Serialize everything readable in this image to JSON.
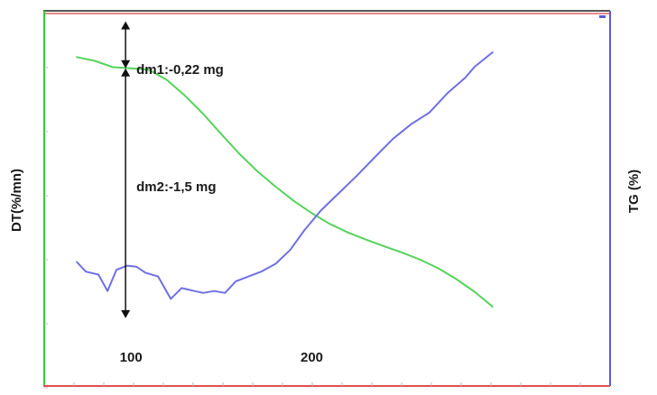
{
  "chart_data": {
    "type": "line",
    "xlabel": "",
    "left_axis_label": "DT(%/mn)",
    "right_axis_label": "TG (%)",
    "x_tick_labels": [
      100,
      200
    ],
    "xlim": [
      52,
      365
    ],
    "ylim": [
      0,
      100
    ],
    "grid": false,
    "series": [
      {
        "color": "#55d35b",
        "axis": "right",
        "x": [
          70,
          80,
          90,
          100,
          110,
          120,
          130,
          140,
          150,
          160,
          170,
          180,
          190,
          200,
          210,
          220,
          230,
          240,
          250,
          260,
          270,
          280,
          290,
          300
        ],
        "y": [
          88.3,
          87.3,
          85.6,
          85.3,
          84.9,
          82.1,
          77.9,
          73.0,
          67.6,
          62.3,
          57.6,
          53.5,
          49.7,
          46.4,
          43.5,
          41.2,
          39.3,
          37.5,
          35.8,
          33.9,
          31.6,
          28.7,
          25.3,
          21.3
        ]
      },
      {
        "color": "#6f6fe6",
        "axis": "left",
        "x": [
          70,
          75,
          82,
          87,
          92,
          98,
          103,
          108,
          115,
          122,
          128,
          135,
          140,
          146,
          152,
          158,
          165,
          172,
          180,
          188,
          196,
          205,
          215,
          225,
          235,
          245,
          255,
          265,
          275,
          285,
          290,
          300
        ],
        "y": [
          33.3,
          30.7,
          29.9,
          25.5,
          31.2,
          32.3,
          32.0,
          30.4,
          29.4,
          23.4,
          26.3,
          25.5,
          25.0,
          25.5,
          25.0,
          28.1,
          29.4,
          30.7,
          32.8,
          36.5,
          41.9,
          47.1,
          51.8,
          56.5,
          61.5,
          66.4,
          70.3,
          73.4,
          78.6,
          82.8,
          85.7,
          89.6
        ]
      }
    ],
    "annotations": [
      {
        "text": "dm1:-0,22 mg",
        "x": 97,
        "y_top": 97.9,
        "y_bottom": 85.3
      },
      {
        "text": "dm2:-1,5 mg",
        "x": 97,
        "y_top": 85.3,
        "y_bottom": 18.2
      }
    ]
  }
}
